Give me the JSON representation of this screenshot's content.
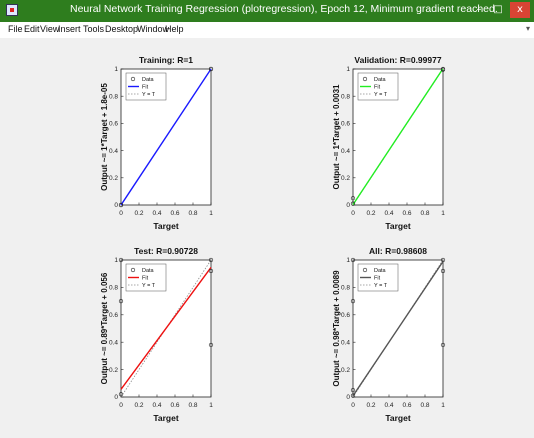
{
  "window": {
    "title": "Neural Network Training Regression (plotregression), Epoch 12, Minimum gradient reached.",
    "controls": {
      "minimize": "–",
      "maximize": "□",
      "close": "x"
    }
  },
  "menu": [
    "File",
    "Edit",
    "View",
    "Insert",
    "Tools",
    "Desktop",
    "Window",
    "Help"
  ],
  "legend_labels": [
    "Data",
    "Fit",
    "Y = T"
  ],
  "colors": {
    "training": "#1a1aff",
    "validation": "#22ee22",
    "test": "#ee1111",
    "all": "#555555",
    "titlebar": "#2e7d1e",
    "close": "#d84434"
  },
  "chart_data": [
    {
      "type": "scatter",
      "title": "Training: R=1",
      "xlabel": "Target",
      "ylabel": "Output ~= 1*Target + 1.8e-05",
      "xlim": [
        0,
        1
      ],
      "ylim": [
        0,
        1
      ],
      "xticks": [
        "0",
        "0.2",
        "0.4",
        "0.6",
        "0.8",
        "1"
      ],
      "yticks": [
        "0",
        "0.2",
        "0.4",
        "0.6",
        "0.8",
        "1"
      ],
      "points": [
        [
          0,
          0
        ],
        [
          0,
          0
        ],
        [
          1,
          1
        ],
        [
          1,
          1
        ]
      ],
      "fit": {
        "slope": 1,
        "intercept": 1.8e-05,
        "color": "#1a1aff"
      }
    },
    {
      "type": "scatter",
      "title": "Validation: R=0.99977",
      "xlabel": "Target",
      "ylabel": "Output ~= 1*Target + 0.0031",
      "xlim": [
        0,
        1
      ],
      "ylim": [
        0,
        1
      ],
      "xticks": [
        "0",
        "0.2",
        "0.4",
        "0.6",
        "0.8",
        "1"
      ],
      "yticks": [
        "0",
        "0.2",
        "0.4",
        "0.6",
        "0.8",
        "1"
      ],
      "points": [
        [
          0,
          0.05
        ],
        [
          0,
          0.01
        ],
        [
          1,
          1
        ],
        [
          1,
          0.995
        ]
      ],
      "fit": {
        "slope": 1,
        "intercept": 0.0031,
        "color": "#22ee22"
      }
    },
    {
      "type": "scatter",
      "title": "Test: R=0.90728",
      "xlabel": "Target",
      "ylabel": "Output ~= 0.89*Target + 0.056",
      "xlim": [
        0,
        1
      ],
      "ylim": [
        0,
        1
      ],
      "xticks": [
        "0",
        "0.2",
        "0.4",
        "0.6",
        "0.8",
        "1"
      ],
      "yticks": [
        "0",
        "0.2",
        "0.4",
        "0.6",
        "0.8",
        "1"
      ],
      "points": [
        [
          0,
          1
        ],
        [
          0,
          0.7
        ],
        [
          0,
          0.02
        ],
        [
          1,
          1
        ],
        [
          1,
          0.92
        ],
        [
          1,
          0.38
        ]
      ],
      "fit": {
        "slope": 0.89,
        "intercept": 0.056,
        "color": "#ee1111"
      }
    },
    {
      "type": "scatter",
      "title": "All: R=0.98608",
      "xlabel": "Target",
      "ylabel": "Output ~= 0.98*Target + 0.0089",
      "xlim": [
        0,
        1
      ],
      "ylim": [
        0,
        1
      ],
      "xticks": [
        "0",
        "0.2",
        "0.4",
        "0.6",
        "0.8",
        "1"
      ],
      "yticks": [
        "0",
        "0.2",
        "0.4",
        "0.6",
        "0.8",
        "1"
      ],
      "points": [
        [
          0,
          1
        ],
        [
          0,
          0.7
        ],
        [
          0,
          0.05
        ],
        [
          0,
          0.01
        ],
        [
          1,
          1
        ],
        [
          1,
          0.92
        ],
        [
          1,
          0.38
        ]
      ],
      "fit": {
        "slope": 0.98,
        "intercept": 0.0089,
        "color": "#555555"
      }
    }
  ]
}
